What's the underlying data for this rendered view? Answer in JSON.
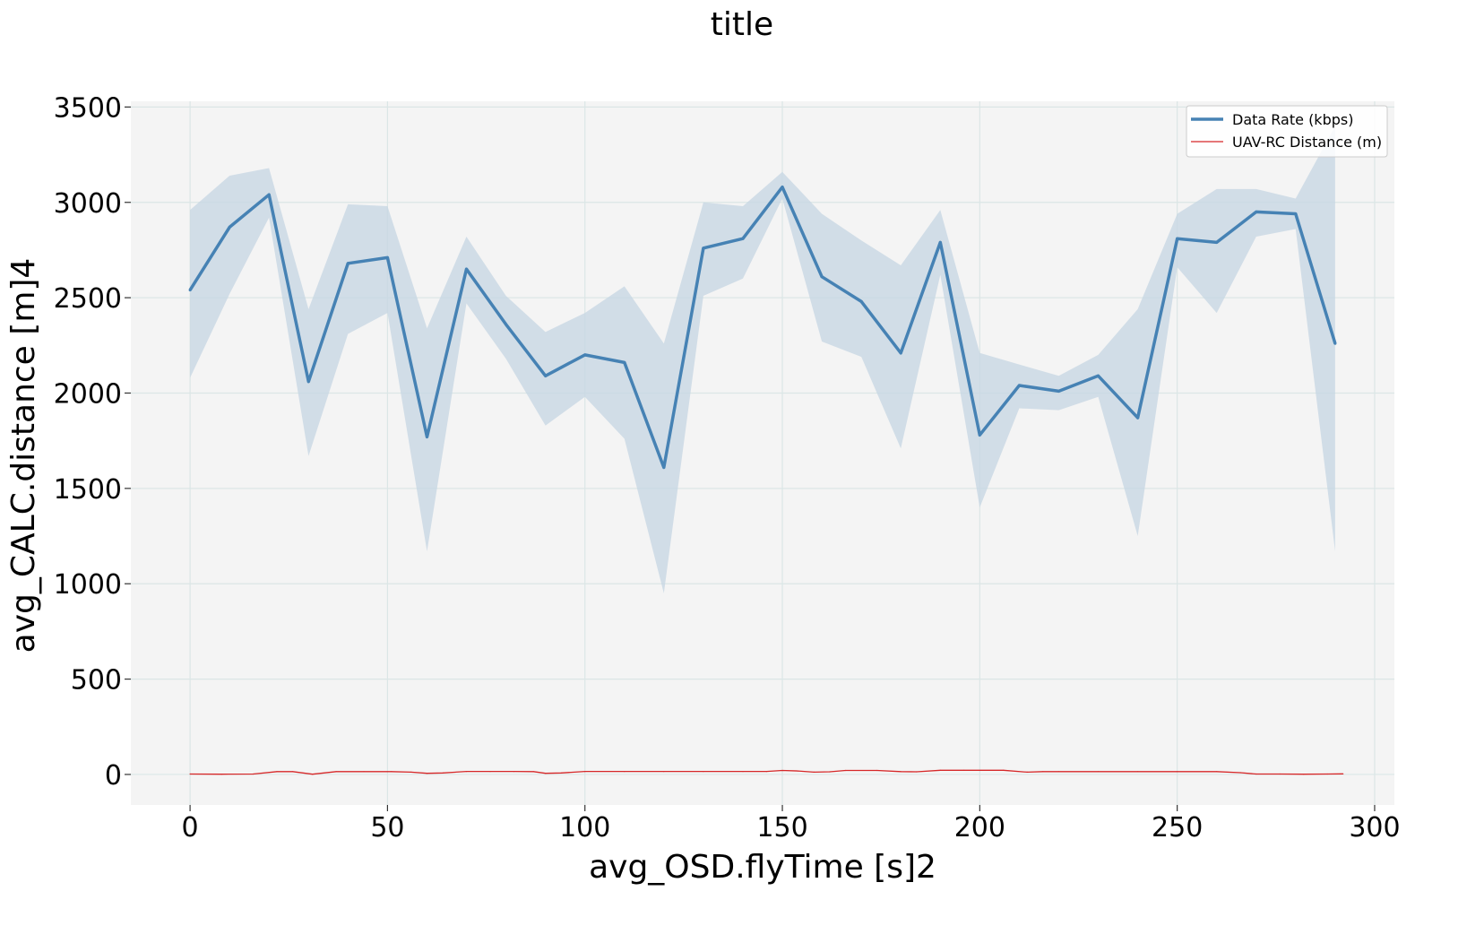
{
  "chart_data": {
    "type": "line",
    "title": "title",
    "xlabel": "avg_OSD.flyTime [s]2",
    "ylabel": "avg_CALC.distance [m]4",
    "xlim": [
      -15,
      305
    ],
    "ylim": [
      -160,
      3530
    ],
    "xticks": [
      0,
      50,
      100,
      150,
      200,
      250,
      300
    ],
    "yticks": [
      0,
      500,
      1000,
      1500,
      2000,
      2500,
      3000,
      3500
    ],
    "grid": true,
    "legend": "top-right",
    "colors": {
      "background": "#f4f4f4",
      "grid": "#dbe6e6",
      "data_rate": "#4682b4",
      "band": "#c5d5e3",
      "distance": "#d62728"
    },
    "series": [
      {
        "name": "Data Rate (kbps)",
        "x": [
          0,
          10,
          20,
          30,
          40,
          50,
          60,
          70,
          80,
          90,
          100,
          110,
          120,
          130,
          140,
          150,
          160,
          170,
          180,
          190,
          200,
          210,
          220,
          230,
          240,
          250,
          260,
          270,
          280,
          290
        ],
        "values": [
          2540,
          2870,
          3040,
          2060,
          2680,
          2710,
          1770,
          2650,
          2360,
          2090,
          2200,
          2160,
          1610,
          2760,
          2810,
          3080,
          2610,
          2480,
          2210,
          2790,
          1780,
          2040,
          2010,
          2090,
          1870,
          2810,
          2790,
          2950,
          2940,
          2260
        ],
        "band_low": [
          2080,
          2520,
          2920,
          1670,
          2310,
          2420,
          1170,
          2470,
          2180,
          1830,
          1980,
          1760,
          950,
          2510,
          2600,
          3020,
          2270,
          2190,
          1710,
          2620,
          1400,
          1920,
          1910,
          1980,
          1250,
          2660,
          2420,
          2820,
          2860,
          1170
        ],
        "band_high": [
          2960,
          3140,
          3180,
          2440,
          2990,
          2980,
          2340,
          2820,
          2510,
          2320,
          2420,
          2560,
          2260,
          3000,
          2980,
          3160,
          2940,
          2800,
          2670,
          2960,
          2210,
          2150,
          2090,
          2200,
          2440,
          2940,
          3070,
          3070,
          3020,
          3400
        ]
      },
      {
        "name": "UAV-RC Distance (m)",
        "x": [
          0,
          8,
          16,
          22,
          26,
          31,
          37,
          44,
          51,
          56,
          60,
          64,
          70,
          76,
          82,
          87,
          90,
          94,
          100,
          110,
          120,
          130,
          140,
          146,
          150,
          154,
          158,
          162,
          166,
          174,
          180,
          184,
          190,
          196,
          206,
          212,
          216,
          220,
          230,
          240,
          250,
          260,
          266,
          270,
          276,
          282,
          288,
          292
        ],
        "values": [
          2,
          1,
          2,
          15,
          15,
          1,
          15,
          15,
          15,
          12,
          6,
          8,
          16,
          16,
          16,
          15,
          6,
          8,
          16,
          16,
          16,
          16,
          16,
          16,
          21,
          18,
          12,
          14,
          21,
          21,
          15,
          14,
          22,
          22,
          22,
          12,
          15,
          15,
          15,
          15,
          15,
          15,
          9,
          2,
          2,
          1,
          2,
          3
        ]
      }
    ]
  }
}
